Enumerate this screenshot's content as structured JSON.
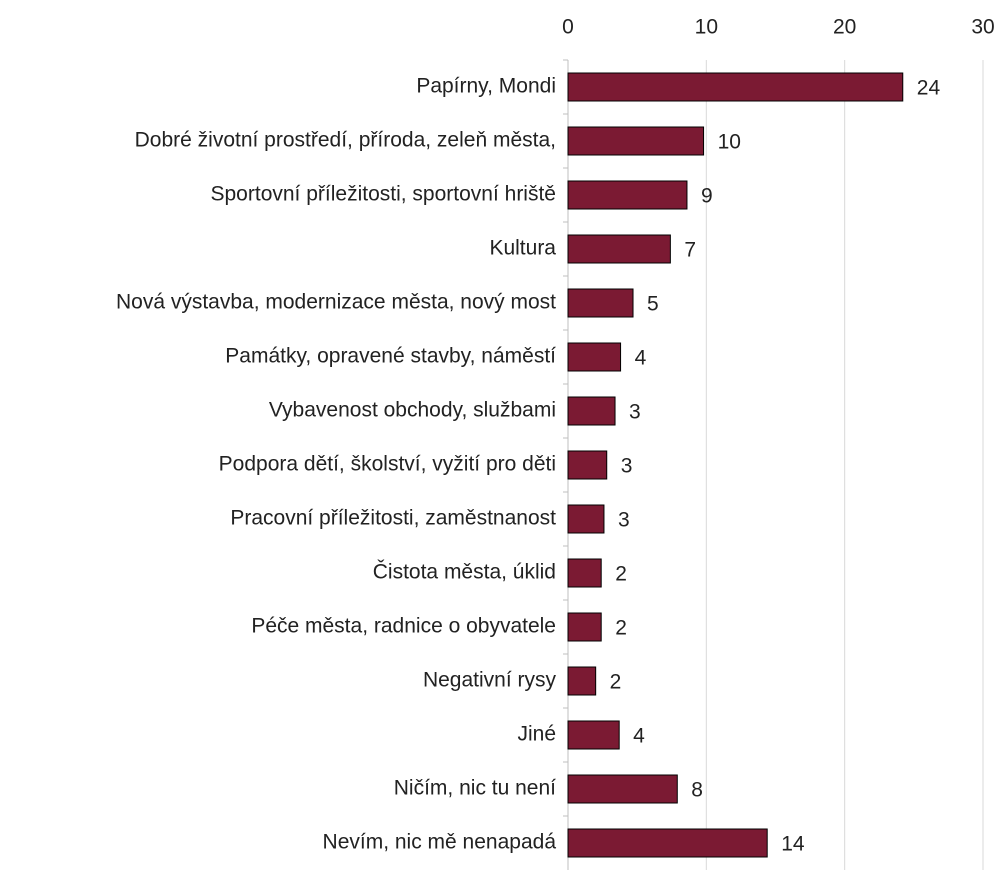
{
  "chart_data": {
    "type": "bar",
    "orientation": "horizontal",
    "categories": [
      "Papírny, Mondi",
      "Dobré životní prostředí, příroda, zeleň města,",
      "Sportovní příležitosti, sportovní hriště",
      "Kultura",
      "Nová výstavba, modernizace města, nový most",
      "Památky, opravené stavby, náměstí",
      "Vybavenost obchody, službami",
      "Podpora dětí, školství, vyžití pro děti",
      "Pracovní příležitosti, zaměstnanost",
      "Čistota města, úklid",
      "Péče města, radnice o obyvatele",
      "Negativní rysy",
      "Jiné",
      "Ničím, nic tu není",
      "Nevím, nic mě nenapadá"
    ],
    "values": [
      24.2,
      9.8,
      8.6,
      7.4,
      4.7,
      3.8,
      3.4,
      2.8,
      2.6,
      2.4,
      2.4,
      2.0,
      3.7,
      7.9,
      14.4
    ],
    "value_labels": [
      "24",
      "10",
      "9",
      "7",
      "5",
      "4",
      "3",
      "3",
      "3",
      "2",
      "2",
      "2",
      "4",
      "8",
      "14"
    ],
    "color": "#7b1a33",
    "xlim": [
      0,
      30
    ],
    "xticks": [
      0,
      10,
      20,
      30
    ],
    "grid": true
  }
}
